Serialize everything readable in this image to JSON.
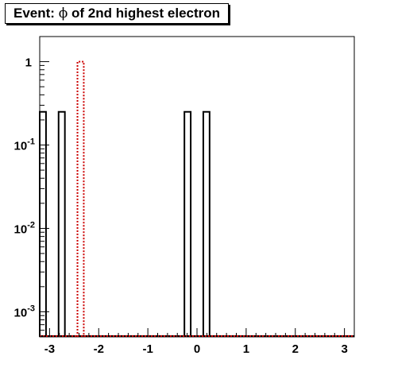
{
  "chart_data": {
    "type": "histogram",
    "title": "Event: ϕ of 2nd highest electron",
    "title_parts": {
      "prefix": "Event: ",
      "symbol": "ϕ",
      "suffix": " of 2nd highest electron"
    },
    "xlabel": "",
    "ylabel": "",
    "xlim": [
      -3.2,
      3.2
    ],
    "ylim": [
      0.0005,
      2
    ],
    "y_scale": "log",
    "grid": false,
    "x_ticks": [
      -3,
      -2,
      -1,
      0,
      1,
      2,
      3
    ],
    "y_ticks": [
      {
        "value": 0.001,
        "base": "10",
        "exp": "-3"
      },
      {
        "value": 0.01,
        "base": "10",
        "exp": "-2"
      },
      {
        "value": 0.1,
        "base": "10",
        "exp": "-1"
      },
      {
        "value": 1,
        "base": "1",
        "exp": ""
      }
    ],
    "bin_width": 0.128,
    "series": [
      {
        "color": "#000000",
        "style": "solid",
        "bins": [
          {
            "x": -3.136,
            "y": 0.25
          },
          {
            "x": -2.752,
            "y": 0.25
          },
          {
            "x": -0.192,
            "y": 0.25
          },
          {
            "x": 0.192,
            "y": 0.25
          }
        ]
      },
      {
        "color": "#cc0000",
        "style": "dotted",
        "bins": [
          {
            "x": -2.368,
            "y": 1
          }
        ]
      }
    ]
  }
}
